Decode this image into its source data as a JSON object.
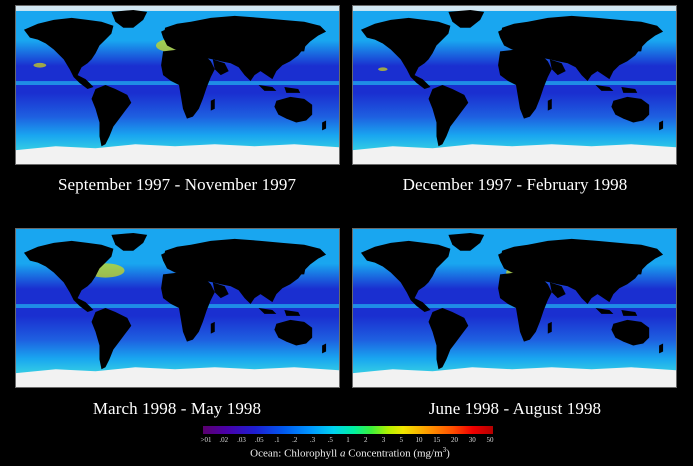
{
  "panels": [
    {
      "caption": "September 1997 - November 1997",
      "name": "map-sep-nov-1997"
    },
    {
      "caption": "December 1997 - February 1998",
      "name": "map-dec-feb-1998"
    },
    {
      "caption": "March 1998 - May 1998",
      "name": "map-mar-may-1998"
    },
    {
      "caption": "June 1998 - August 1998",
      "name": "map-jun-aug-1998"
    }
  ],
  "legend": {
    "ticks": [
      ">01",
      ".02",
      ".03",
      ".05",
      ".1",
      ".2",
      ".3",
      ".5",
      "1",
      "2",
      "3",
      "5",
      "10",
      "15",
      "20",
      "30",
      "50"
    ],
    "title_prefix": "Ocean:  Chlorophyll",
    "title_italic": "a",
    "title_suffix": " Concentration (mg/m",
    "title_sup": "3",
    "title_close": ")"
  },
  "colors": {
    "background": "#000000",
    "land": "#000000",
    "ocean_low": "#1a2fd0",
    "ocean_mid": "#19a6f0",
    "ocean_high": "#e6e600",
    "ice": "#f2f2f2"
  }
}
